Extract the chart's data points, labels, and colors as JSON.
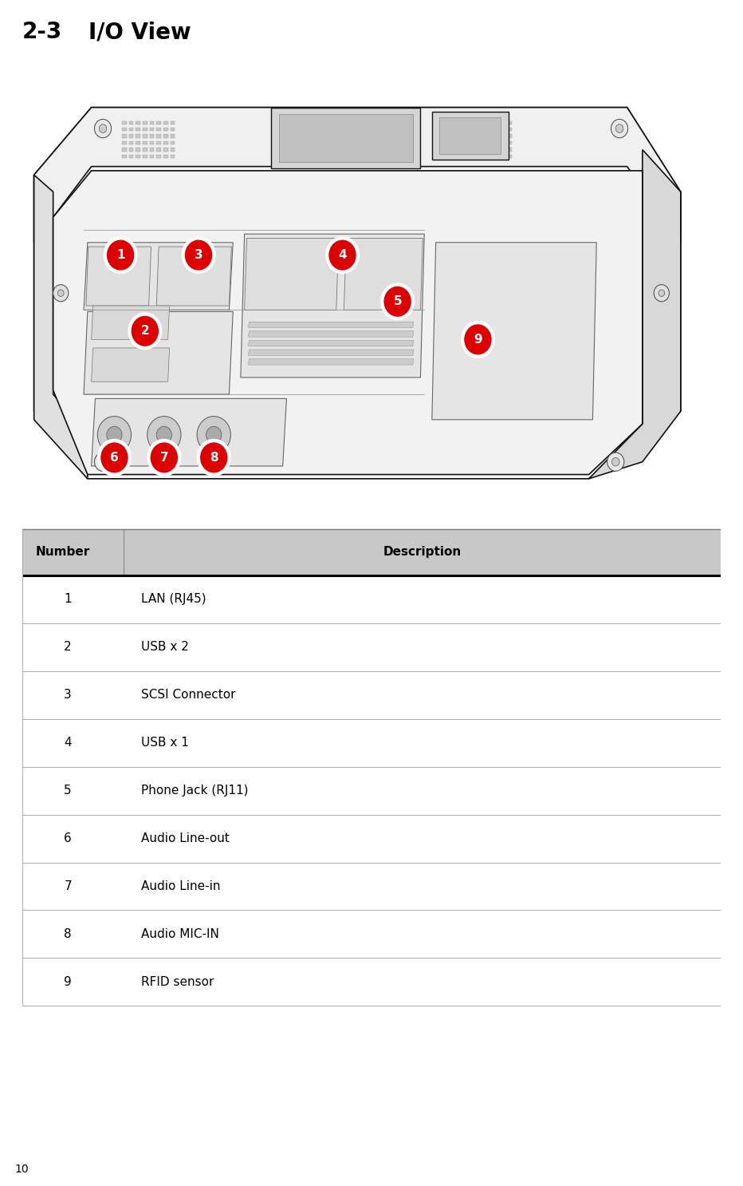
{
  "title_number": "2-3",
  "title_text": "I/O View",
  "page_number": "10",
  "table_header": [
    "Number",
    "Description"
  ],
  "table_rows": [
    [
      "1",
      "LAN (RJ45)"
    ],
    [
      "2",
      "USB x 2"
    ],
    [
      "3",
      "SCSI Connector"
    ],
    [
      "4",
      "USB x 1"
    ],
    [
      "5",
      "Phone Jack (RJ11)"
    ],
    [
      "6",
      "Audio Line-out"
    ],
    [
      "7",
      "Audio Line-in"
    ],
    [
      "8",
      "Audio MIC-IN"
    ],
    [
      "9",
      "RFID sensor"
    ]
  ],
  "header_bg": "#c8c8c8",
  "divider_color": "#aaaaaa",
  "thick_divider_color": "#000000",
  "fig_width": 9.32,
  "fig_height": 14.86,
  "circle_color": "#dd0000",
  "circle_fill": "#dd0000",
  "circle_text_color": "#ffffff"
}
